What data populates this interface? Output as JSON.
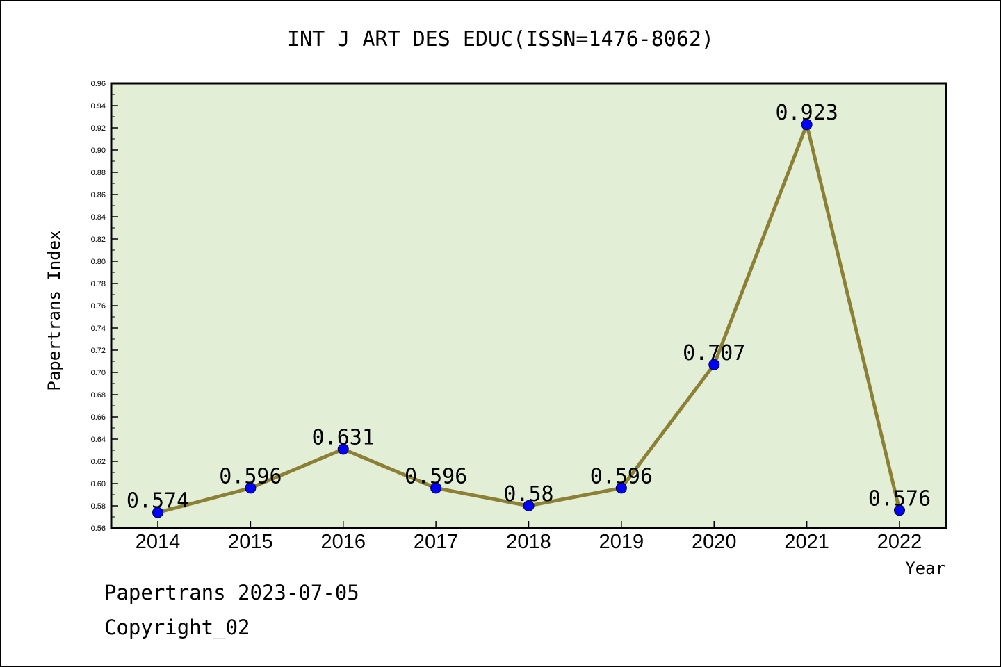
{
  "chart_data": {
    "type": "line",
    "title": "INT J ART DES EDUC(ISSN=1476-8062)",
    "xlabel": "Year",
    "ylabel": "Papertrans Index",
    "categories": [
      "2014",
      "2015",
      "2016",
      "2017",
      "2018",
      "2019",
      "2020",
      "2021",
      "2022"
    ],
    "series": [
      {
        "values": [
          0.574,
          0.596,
          0.631,
          0.596,
          0.58,
          0.596,
          0.707,
          0.923,
          0.576
        ],
        "labels": [
          "0.574",
          "0.596",
          "0.631",
          "0.596",
          "0.58",
          "0.596",
          "0.707",
          "0.923",
          "0.576"
        ]
      }
    ],
    "ylim": [
      0.56,
      0.96
    ],
    "yticks": [
      "0.56",
      "0.58",
      "0.60",
      "0.62",
      "0.64",
      "0.66",
      "0.68",
      "0.70",
      "0.72",
      "0.74",
      "0.76",
      "0.78",
      "0.80",
      "0.82",
      "0.84",
      "0.86",
      "0.88",
      "0.90",
      "0.92",
      "0.94",
      "0.96"
    ],
    "grid": false,
    "legend": "none",
    "colors": {
      "plot_background": "#e2efd6",
      "line": "#8b8035",
      "marker": "#0000ff"
    }
  },
  "footer": {
    "date": "Papertrans 2023-07-05",
    "copyright": "Copyright_02"
  }
}
